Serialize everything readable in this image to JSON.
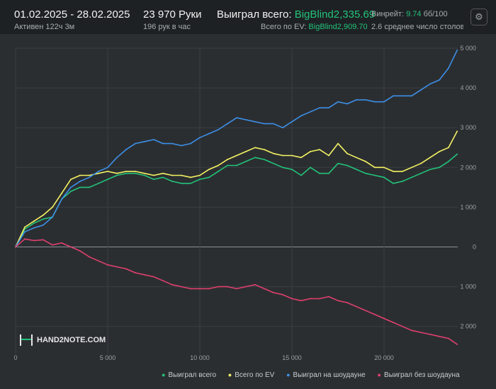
{
  "header": {
    "date_range": "01.02.2025 - 28.02.2025",
    "active": "Активен 122ч 3м",
    "hands": "23 970 Руки",
    "hands_per_hour": "196 рук в час",
    "won_label": "Выиграл всего:",
    "won_value": "BigBlind2,335.69",
    "ev_label": "Всего по EV:",
    "ev_value": "BigBlind2,909.70",
    "winrate_label": "Винрейт:",
    "winrate_value": "9.74",
    "winrate_per": "бб/100",
    "tables": "2.6 среднее число столов",
    "settings_icon": "gear-icon"
  },
  "logo_text": "HAND2NOTE.COM",
  "colors": {
    "won": "#22c37a",
    "ev": "#f4f262",
    "showdown": "#3d8fe6",
    "no_showdown": "#e0406e"
  },
  "chart_data": {
    "type": "line",
    "x_ticks": [
      "0",
      "5 000",
      "10 000",
      "15 000",
      "20 000"
    ],
    "y_ticks": [
      "5 000",
      "4 000",
      "3 000",
      "2 000",
      "1 000",
      "0",
      "-1 000",
      "-2 000"
    ],
    "y_tick_labels": [
      "5 000",
      "4 000",
      "3 000",
      "2 000",
      "1 000",
      "0",
      "1 000",
      "2 000"
    ],
    "xlim": [
      0,
      24000
    ],
    "ylim": [
      -2700,
      5000
    ],
    "grid": true,
    "legend_position": "bottom",
    "x": [
      0,
      500,
      1000,
      1500,
      2000,
      2500,
      3000,
      3500,
      4000,
      4500,
      5000,
      5500,
      6000,
      6500,
      7000,
      7500,
      8000,
      8500,
      9000,
      9500,
      10000,
      10500,
      11000,
      11500,
      12000,
      12500,
      13000,
      13500,
      14000,
      14500,
      15000,
      15500,
      16000,
      16500,
      17000,
      17500,
      18000,
      18500,
      19000,
      19500,
      20000,
      20500,
      21000,
      21500,
      22000,
      22500,
      23000,
      23500,
      23970
    ],
    "series": [
      {
        "name": "Выиграл всего",
        "color_key": "won",
        "values": [
          0,
          450,
          600,
          700,
          750,
          1200,
          1400,
          1500,
          1500,
          1600,
          1700,
          1800,
          1850,
          1850,
          1800,
          1700,
          1750,
          1650,
          1600,
          1600,
          1700,
          1750,
          1900,
          2050,
          2050,
          2150,
          2250,
          2200,
          2100,
          2000,
          1950,
          1800,
          2000,
          1850,
          1850,
          2100,
          2050,
          1950,
          1850,
          1800,
          1750,
          1600,
          1650,
          1750,
          1850,
          1950,
          2000,
          2150,
          2335.69
        ]
      },
      {
        "name": "Всего по EV",
        "color_key": "ev",
        "values": [
          0,
          500,
          650,
          800,
          1000,
          1350,
          1700,
          1800,
          1800,
          1850,
          1900,
          1850,
          1900,
          1900,
          1850,
          1800,
          1850,
          1800,
          1800,
          1750,
          1800,
          1950,
          2050,
          2200,
          2300,
          2400,
          2500,
          2450,
          2350,
          2300,
          2300,
          2250,
          2400,
          2450,
          2300,
          2600,
          2350,
          2250,
          2150,
          2000,
          2000,
          1900,
          1900,
          2000,
          2100,
          2250,
          2400,
          2500,
          2909.7
        ]
      },
      {
        "name": "Выиграл на шоудауне",
        "color_key": "showdown",
        "values": [
          0,
          380,
          480,
          550,
          750,
          1200,
          1500,
          1650,
          1750,
          1900,
          2000,
          2250,
          2450,
          2600,
          2650,
          2700,
          2600,
          2600,
          2550,
          2600,
          2750,
          2850,
          2950,
          3100,
          3250,
          3200,
          3150,
          3100,
          3100,
          3000,
          3150,
          3300,
          3400,
          3500,
          3500,
          3650,
          3600,
          3700,
          3700,
          3650,
          3650,
          3800,
          3800,
          3800,
          3950,
          4100,
          4200,
          4500,
          4950
        ]
      },
      {
        "name": "Выиграл без шоудауна",
        "color_key": "no_showdown",
        "values": [
          0,
          200,
          160,
          180,
          50,
          100,
          0,
          -100,
          -250,
          -350,
          -450,
          -500,
          -550,
          -650,
          -700,
          -750,
          -850,
          -950,
          -1000,
          -1050,
          -1050,
          -1050,
          -1000,
          -1000,
          -1050,
          -1000,
          -950,
          -1050,
          -1150,
          -1200,
          -1300,
          -1350,
          -1300,
          -1300,
          -1250,
          -1350,
          -1400,
          -1500,
          -1600,
          -1700,
          -1800,
          -1900,
          -2000,
          -2100,
          -2150,
          -2200,
          -2250,
          -2300,
          -2450
        ]
      }
    ]
  }
}
